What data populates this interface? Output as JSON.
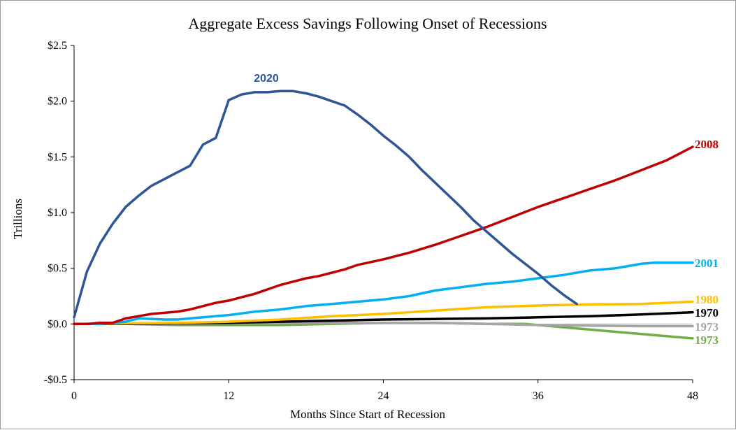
{
  "chart_data": {
    "type": "line",
    "title": "Aggregate Excess Savings Following Onset of Recessions",
    "xlabel": "Months Since Start of Recession",
    "ylabel": "Trillions",
    "xlim": [
      0,
      48
    ],
    "ylim": [
      -0.5,
      2.5
    ],
    "x_ticks": [
      0,
      12,
      24,
      36,
      48
    ],
    "x_tick_labels": [
      "0",
      "12",
      "24",
      "36",
      "48"
    ],
    "y_ticks": [
      -0.5,
      0,
      0.5,
      1,
      1.5,
      2,
      2.5
    ],
    "y_tick_labels": [
      "-$0.5",
      "$0.0",
      "$0.5",
      "$1.0",
      "$1.5",
      "$2.0",
      "$2.5"
    ],
    "grid": false,
    "legend": "labels at line ends",
    "series": [
      {
        "name": "1973",
        "color": "#70ad47",
        "label_color": "#70ad47",
        "label_font": "serif",
        "x": [
          0,
          4,
          8,
          12,
          16,
          20,
          24,
          28,
          32,
          35,
          38,
          42,
          45,
          48
        ],
        "y": [
          0,
          0,
          -0.01,
          -0.01,
          -0.01,
          0.0,
          0.01,
          0.01,
          0.0,
          0.0,
          -0.03,
          -0.07,
          -0.1,
          -0.13
        ]
      },
      {
        "name": "1973",
        "color": "#a5a5a5",
        "label_color": "#a5a5a5",
        "label_font": "serif",
        "x": [
          0,
          4,
          8,
          12,
          16,
          20,
          24,
          28,
          32,
          36,
          40,
          44,
          48
        ],
        "y": [
          0,
          0,
          0,
          0.005,
          0.01,
          0.01,
          0.01,
          0.01,
          0.0,
          -0.01,
          -0.015,
          -0.02,
          -0.02
        ]
      },
      {
        "name": "1970",
        "color": "#000000",
        "label_color": "#000000",
        "label_font": "serif",
        "x": [
          0,
          4,
          8,
          12,
          16,
          20,
          24,
          28,
          32,
          36,
          40,
          44,
          48
        ],
        "y": [
          0,
          0,
          0.005,
          0.01,
          0.02,
          0.03,
          0.04,
          0.045,
          0.05,
          0.06,
          0.07,
          0.085,
          0.105
        ]
      },
      {
        "name": "1980",
        "color": "#ffc000",
        "label_color": "#ffc000",
        "label_font": "serif",
        "x": [
          0,
          4,
          8,
          12,
          16,
          20,
          24,
          28,
          32,
          36,
          40,
          44,
          48
        ],
        "y": [
          0,
          0.005,
          0.01,
          0.02,
          0.04,
          0.07,
          0.09,
          0.12,
          0.15,
          0.165,
          0.175,
          0.18,
          0.2
        ]
      },
      {
        "name": "2001",
        "color": "#00b0f0",
        "label_color": "#00b0f0",
        "label_font": "serif",
        "x": [
          0,
          2,
          4,
          5,
          7,
          8,
          10,
          12,
          14,
          16,
          18,
          20,
          22,
          24,
          26,
          28,
          30,
          32,
          34,
          36,
          38,
          40,
          42,
          43,
          44,
          45,
          46,
          47,
          48
        ],
        "y": [
          0,
          0.0,
          0.02,
          0.05,
          0.04,
          0.04,
          0.06,
          0.08,
          0.11,
          0.13,
          0.16,
          0.18,
          0.2,
          0.22,
          0.25,
          0.3,
          0.33,
          0.36,
          0.38,
          0.41,
          0.44,
          0.48,
          0.5,
          0.52,
          0.54,
          0.55,
          0.55,
          0.55,
          0.55
        ]
      },
      {
        "name": "2008",
        "color": "#c00000",
        "label_color": "#c00000",
        "label_font": "serif",
        "x": [
          0,
          1,
          2,
          3,
          4,
          5,
          6,
          7,
          8,
          9,
          10,
          11,
          12,
          13,
          14,
          15,
          16,
          17,
          18,
          19,
          20,
          21,
          22,
          24,
          26,
          28,
          30,
          32,
          34,
          36,
          38,
          40,
          42,
          44,
          46,
          48
        ],
        "y": [
          0,
          0.0,
          0.01,
          0.01,
          0.05,
          0.07,
          0.09,
          0.1,
          0.11,
          0.13,
          0.16,
          0.19,
          0.21,
          0.24,
          0.27,
          0.31,
          0.35,
          0.38,
          0.41,
          0.43,
          0.46,
          0.49,
          0.53,
          0.58,
          0.64,
          0.71,
          0.79,
          0.87,
          0.96,
          1.05,
          1.13,
          1.21,
          1.29,
          1.38,
          1.47,
          1.59
        ]
      },
      {
        "name": "2020",
        "color": "#2f5597",
        "label_color": "#2f5597",
        "label_font": "sans",
        "x": [
          0,
          1,
          2,
          3,
          4,
          5,
          6,
          7,
          8,
          9,
          10,
          11,
          12,
          13,
          14,
          15,
          16,
          17,
          18,
          19,
          20,
          21,
          22,
          23,
          24,
          25,
          26,
          27,
          28,
          29,
          30,
          31,
          32,
          33,
          34,
          35,
          36,
          37,
          38,
          39
        ],
        "y": [
          0.06,
          0.47,
          0.72,
          0.9,
          1.05,
          1.15,
          1.24,
          1.3,
          1.36,
          1.42,
          1.61,
          1.67,
          2.01,
          2.06,
          2.08,
          2.08,
          2.09,
          2.09,
          2.07,
          2.04,
          2.0,
          1.96,
          1.88,
          1.79,
          1.69,
          1.6,
          1.5,
          1.38,
          1.27,
          1.16,
          1.05,
          0.93,
          0.83,
          0.73,
          0.63,
          0.54,
          0.45,
          0.35,
          0.26,
          0.18
        ]
      }
    ]
  }
}
